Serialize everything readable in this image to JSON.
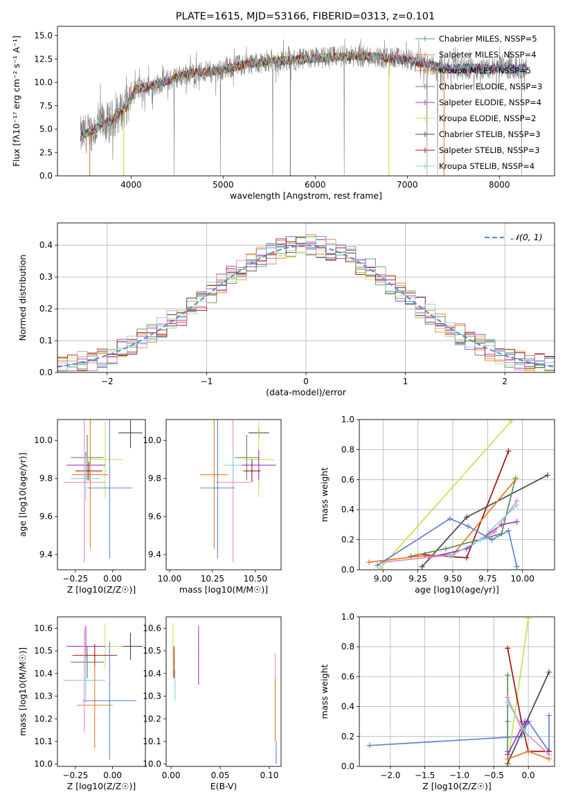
{
  "figure_title": "PLATE=1615, MJD=53166, FIBERID=0313, z=0.101",
  "chart_data": [
    {
      "id": "spectrum",
      "type": "line",
      "title": "PLATE=1615, MJD=53166, FIBERID=0313, z=0.101",
      "xlabel": "wavelength [Angstrom, rest frame]",
      "ylabel": "Flux [fλ10⁻¹⁷ erg cm⁻² s⁻¹ A⁻¹]",
      "xlim": [
        3200,
        8600
      ],
      "ylim": [
        0,
        16
      ],
      "xticks": [
        4000,
        5000,
        6000,
        7000,
        8000
      ],
      "yticks": [
        0.0,
        2.5,
        5.0,
        7.5,
        10.0,
        12.5,
        15.0
      ],
      "grid": false,
      "legend_position": "top-right",
      "legend": [
        {
          "label": "Chabrier MILES, NSSP=5",
          "color": "#4e8f9c"
        },
        {
          "label": "Salpeter MILES, NSSP=4",
          "color": "#e8823c"
        },
        {
          "label": "Kroupa MILES, NSSP=5",
          "color": "#e07b1a"
        },
        {
          "label": "Chabrier ELODIE, NSSP=3",
          "color": "#5a8a5a"
        },
        {
          "label": "Salpeter ELODIE, NSSP=4",
          "color": "#9932cc"
        },
        {
          "label": "Kroupa ELODIE, NSSP=2",
          "color": "#c8e04a"
        },
        {
          "label": "Chabrier STELIB, NSSP=3",
          "color": "#444444"
        },
        {
          "label": "Salpeter STELIB, NSSP=3",
          "color": "#a01010"
        },
        {
          "label": "Kroupa STELIB, NSSP=4",
          "color": "#7ed3e0"
        }
      ],
      "continuum_x": [
        3450,
        3600,
        3800,
        3950,
        4050,
        4200,
        4400,
        4600,
        4800,
        5000,
        5200,
        5400,
        5600,
        5800,
        6000,
        6200,
        6400,
        6600,
        6800,
        7000,
        7200,
        7400
      ],
      "continuum_y": [
        4.2,
        5.0,
        6.0,
        7.5,
        9.2,
        9.6,
        10.2,
        10.9,
        11.1,
        11.3,
        11.9,
        12.1,
        12.3,
        12.4,
        12.6,
        12.7,
        12.8,
        12.8,
        12.6,
        12.4,
        12.0,
        11.5
      ],
      "dropouts_x": [
        3550,
        3920,
        5730,
        6800,
        7400
      ]
    },
    {
      "id": "histogram",
      "type": "bar",
      "xlabel": "(data-model)/error",
      "ylabel": "Normed distribution",
      "xlim": [
        -2.5,
        2.5
      ],
      "ylim": [
        0,
        0.47
      ],
      "xticks": [
        -2,
        -1,
        0,
        1,
        2
      ],
      "yticks": [
        0.0,
        0.1,
        0.2,
        0.3,
        0.4
      ],
      "grid": true,
      "legend_position": "top-right",
      "legend": [
        {
          "label": "𝒩(0, 1)",
          "color": "#5b8fd6"
        }
      ],
      "gaussian_mean": 0,
      "gaussian_sigma": 1,
      "series_colors": [
        "#4e8f9c",
        "#e8823c",
        "#e07b1a",
        "#5a8a5a",
        "#9932cc",
        "#c8e04a",
        "#444444",
        "#a01010",
        "#7ed3e0",
        "#e88bbf"
      ]
    },
    {
      "id": "age-vs-Z",
      "type": "scatter",
      "xlabel": "Z [log10(Z/Z☉)]",
      "ylabel": "age  [log10(age/yr)]",
      "xlim": [
        -0.37,
        0.22
      ],
      "ylim": [
        9.32,
        10.11
      ],
      "xticks": [
        -0.25,
        0.0
      ],
      "yticks": [
        9.4,
        9.6,
        9.8,
        10.0
      ],
      "grid": false,
      "points": [
        {
          "x": 0.12,
          "y": 10.04,
          "xerr": 0.08,
          "yerr": 0.08,
          "color": "#444444"
        },
        {
          "x": -0.17,
          "y": 9.91,
          "xerr": 0.11,
          "yerr": 0.12,
          "color": "#5a8a5a"
        },
        {
          "x": -0.05,
          "y": 9.9,
          "xerr": 0.12,
          "yerr": 0.2,
          "color": "#c8e04a"
        },
        {
          "x": -0.18,
          "y": 9.87,
          "xerr": 0.13,
          "yerr": 0.07,
          "color": "#9932cc"
        },
        {
          "x": -0.16,
          "y": 9.84,
          "xerr": 0.09,
          "yerr": 0.05,
          "color": "#a01010"
        },
        {
          "x": -0.15,
          "y": 9.82,
          "xerr": 0.12,
          "yerr": 0.39,
          "color": "#e07b1a"
        },
        {
          "x": -0.19,
          "y": 9.78,
          "xerr": 0.14,
          "yerr": 0.42,
          "color": "#e88bbf"
        },
        {
          "x": -0.02,
          "y": 9.75,
          "xerr": 0.15,
          "yerr": 0.37,
          "color": "#5b7fd6"
        },
        {
          "x": -0.18,
          "y": 9.8,
          "xerr": 0.1,
          "yerr": 0.12,
          "color": "#7ed3e0"
        }
      ]
    },
    {
      "id": "age-vs-mass",
      "type": "scatter",
      "xlabel": "mass [log10(M/M☉)]",
      "ylabel": "",
      "xlim": [
        9.98,
        10.65
      ],
      "ylim": [
        9.32,
        10.11
      ],
      "xticks": [
        10.0,
        10.25,
        10.5
      ],
      "yticks": [
        9.4,
        9.6,
        9.8,
        10.0
      ],
      "grid": false,
      "points": [
        {
          "x": 10.52,
          "y": 10.04,
          "xerr": 0.06,
          "yerr": 0.02,
          "color": "#444444"
        },
        {
          "x": 10.45,
          "y": 9.91,
          "xerr": 0.07,
          "yerr": 0.12,
          "color": "#5a8a5a"
        },
        {
          "x": 10.52,
          "y": 9.9,
          "xerr": 0.09,
          "yerr": 0.2,
          "color": "#c8e04a"
        },
        {
          "x": 10.52,
          "y": 9.87,
          "xerr": 0.1,
          "yerr": 0.08,
          "color": "#9932cc"
        },
        {
          "x": 10.48,
          "y": 9.84,
          "xerr": 0.05,
          "yerr": 0.06,
          "color": "#a01010"
        },
        {
          "x": 10.26,
          "y": 9.82,
          "xerr": 0.08,
          "yerr": 0.39,
          "color": "#e07b1a"
        },
        {
          "x": 10.37,
          "y": 9.78,
          "xerr": 0.1,
          "yerr": 0.42,
          "color": "#e88bbf"
        },
        {
          "x": 10.28,
          "y": 9.75,
          "xerr": 0.1,
          "yerr": 0.37,
          "color": "#5b7fd6"
        },
        {
          "x": 10.37,
          "y": 9.87,
          "xerr": 0.05,
          "yerr": 0.07,
          "color": "#7ed3e0"
        }
      ]
    },
    {
      "id": "massweight-vs-age",
      "type": "line",
      "xlabel": "age  [log10(age/yr)]",
      "ylabel": "mass weight",
      "xlim": [
        8.83,
        10.23
      ],
      "ylim": [
        0,
        1
      ],
      "xticks": [
        9.0,
        9.25,
        9.5,
        9.75,
        10.0
      ],
      "yticks": [
        0.0,
        0.2,
        0.4,
        0.6,
        0.8,
        1.0
      ],
      "grid": true,
      "series": [
        {
          "color": "#c8e04a",
          "x": [
            8.98,
            9.92
          ],
          "y": [
            0.01,
            0.99
          ]
        },
        {
          "color": "#a01010",
          "x": [
            9.3,
            9.6,
            9.9
          ],
          "y": [
            0.1,
            0.08,
            0.79
          ]
        },
        {
          "color": "#444444",
          "x": [
            9.28,
            9.6,
            10.18
          ],
          "y": [
            0.02,
            0.35,
            0.63
          ]
        },
        {
          "color": "#5a8a5a",
          "x": [
            9.2,
            9.45,
            9.85,
            9.95
          ],
          "y": [
            0.09,
            0.14,
            0.24,
            0.61
          ]
        },
        {
          "color": "#e07b1a",
          "x": [
            8.9,
            9.25,
            9.5,
            9.95
          ],
          "y": [
            0.05,
            0.09,
            0.1,
            0.6
          ]
        },
        {
          "color": "#9932cc",
          "x": [
            9.33,
            9.6,
            9.85,
            9.96
          ],
          "y": [
            0.08,
            0.14,
            0.3,
            0.32
          ]
        },
        {
          "color": "#e88bbf",
          "x": [
            9.0,
            9.5,
            9.8,
            9.96
          ],
          "y": [
            0.05,
            0.1,
            0.25,
            0.46
          ]
        },
        {
          "color": "#7ed3e0",
          "x": [
            9.48,
            9.7,
            9.96
          ],
          "y": [
            0.09,
            0.2,
            0.43
          ]
        },
        {
          "color": "#5b7fd6",
          "x": [
            8.96,
            9.48,
            9.61,
            9.78,
            9.9,
            9.96
          ],
          "y": [
            0.03,
            0.34,
            0.29,
            0.2,
            0.26,
            0.02
          ]
        }
      ]
    },
    {
      "id": "mass-vs-Z",
      "type": "scatter",
      "xlabel": "Z [log10(Z/Z☉)]",
      "ylabel": "mass [log10(M/M☉)]",
      "xlim": [
        -0.37,
        0.22
      ],
      "ylim": [
        9.99,
        10.65
      ],
      "xticks": [
        -0.25,
        0.0
      ],
      "yticks": [
        10.0,
        10.1,
        10.2,
        10.3,
        10.4,
        10.5,
        10.6
      ],
      "grid": false,
      "points": [
        {
          "x": 0.12,
          "y": 10.52,
          "xerr": 0.08,
          "yerr": 0.06,
          "color": "#444444"
        },
        {
          "x": -0.17,
          "y": 10.45,
          "xerr": 0.11,
          "yerr": 0.07,
          "color": "#5a8a5a"
        },
        {
          "x": -0.05,
          "y": 10.52,
          "xerr": 0.12,
          "yerr": 0.1,
          "color": "#c8e04a"
        },
        {
          "x": -0.18,
          "y": 10.52,
          "xerr": 0.13,
          "yerr": 0.09,
          "color": "#9932cc"
        },
        {
          "x": -0.12,
          "y": 10.48,
          "xerr": 0.15,
          "yerr": 0.05,
          "color": "#a01010"
        },
        {
          "x": -0.12,
          "y": 10.26,
          "xerr": 0.12,
          "yerr": 0.19,
          "color": "#e07b1a"
        },
        {
          "x": -0.19,
          "y": 10.37,
          "xerr": 0.14,
          "yerr": 0.23,
          "color": "#e88bbf"
        },
        {
          "x": -0.02,
          "y": 10.28,
          "xerr": 0.18,
          "yerr": 0.26,
          "color": "#5b7fd6"
        },
        {
          "x": -0.18,
          "y": 10.37,
          "xerr": 0.12,
          "yerr": 0.1,
          "color": "#7ed3e0"
        }
      ]
    },
    {
      "id": "mass-vs-ebv",
      "type": "scatter",
      "xlabel": "E(B-V)",
      "ylabel": "",
      "xlim": [
        -0.005,
        0.112
      ],
      "ylim": [
        9.99,
        10.65
      ],
      "xticks": [
        0.0,
        0.05,
        0.1
      ],
      "yticks": [
        10.0,
        10.1,
        10.2,
        10.3,
        10.4,
        10.5,
        10.6
      ],
      "grid": false,
      "points": [
        {
          "x": 0.002,
          "y": 10.5,
          "yerr": 0.12,
          "color": "#c8e04a"
        },
        {
          "x": 0.003,
          "y": 10.45,
          "yerr": 0.07,
          "color": "#a01010"
        },
        {
          "x": 0.004,
          "y": 10.35,
          "yerr": 0.07,
          "color": "#7ed3e0"
        },
        {
          "x": 0.028,
          "y": 10.48,
          "yerr": 0.13,
          "color": "#9932cc"
        },
        {
          "x": 0.106,
          "y": 10.37,
          "yerr": 0.12,
          "color": "#e88bbf"
        },
        {
          "x": 0.106,
          "y": 10.24,
          "yerr": 0.14,
          "color": "#e07b1a"
        },
        {
          "x": 0.107,
          "y": 10.05,
          "yerr": 0.05,
          "color": "#5b7fd6"
        }
      ]
    },
    {
      "id": "massweight-vs-Z",
      "type": "line",
      "xlabel": "Z [log10(Z/Z☉)]",
      "ylabel": "mass weight",
      "xlim": [
        -2.45,
        0.38
      ],
      "ylim": [
        0,
        1
      ],
      "xticks": [
        -2.0,
        -1.5,
        -1.0,
        -0.5,
        0.0
      ],
      "yticks": [
        0.0,
        0.2,
        0.4,
        0.6,
        0.8,
        1.0
      ],
      "grid": true,
      "series": [
        {
          "color": "#5b7fd6",
          "x": [
            -2.3,
            -0.1,
            0.0,
            0.3,
            0.3
          ],
          "y": [
            0.14,
            0.2,
            0.3,
            0.1,
            0.34
          ]
        },
        {
          "color": "#c8e04a",
          "x": [
            -0.3,
            0.0
          ],
          "y": [
            0.01,
            0.99
          ]
        },
        {
          "color": "#a01010",
          "x": [
            -0.3,
            -0.1,
            0.0,
            0.3
          ],
          "y": [
            0.79,
            0.3,
            0.1,
            0.1
          ]
        },
        {
          "color": "#444444",
          "x": [
            -0.3,
            0.3
          ],
          "y": [
            0.02,
            0.63
          ]
        },
        {
          "color": "#5a8a5a",
          "x": [
            -0.3,
            -0.3,
            -0.3
          ],
          "y": [
            0.1,
            0.61,
            0.3
          ]
        },
        {
          "color": "#e07b1a",
          "x": [
            -0.3,
            0.0,
            0.3
          ],
          "y": [
            0.05,
            0.1,
            0.05
          ]
        },
        {
          "color": "#9932cc",
          "x": [
            -0.3,
            -0.05,
            0.0
          ],
          "y": [
            0.08,
            0.3,
            0.3
          ]
        },
        {
          "color": "#e88bbf",
          "x": [
            -0.3,
            -0.1,
            0.3
          ],
          "y": [
            0.46,
            0.25,
            0.08
          ]
        },
        {
          "color": "#7ed3e0",
          "x": [
            -0.3,
            0.0
          ],
          "y": [
            0.43,
            0.2
          ]
        }
      ]
    }
  ]
}
